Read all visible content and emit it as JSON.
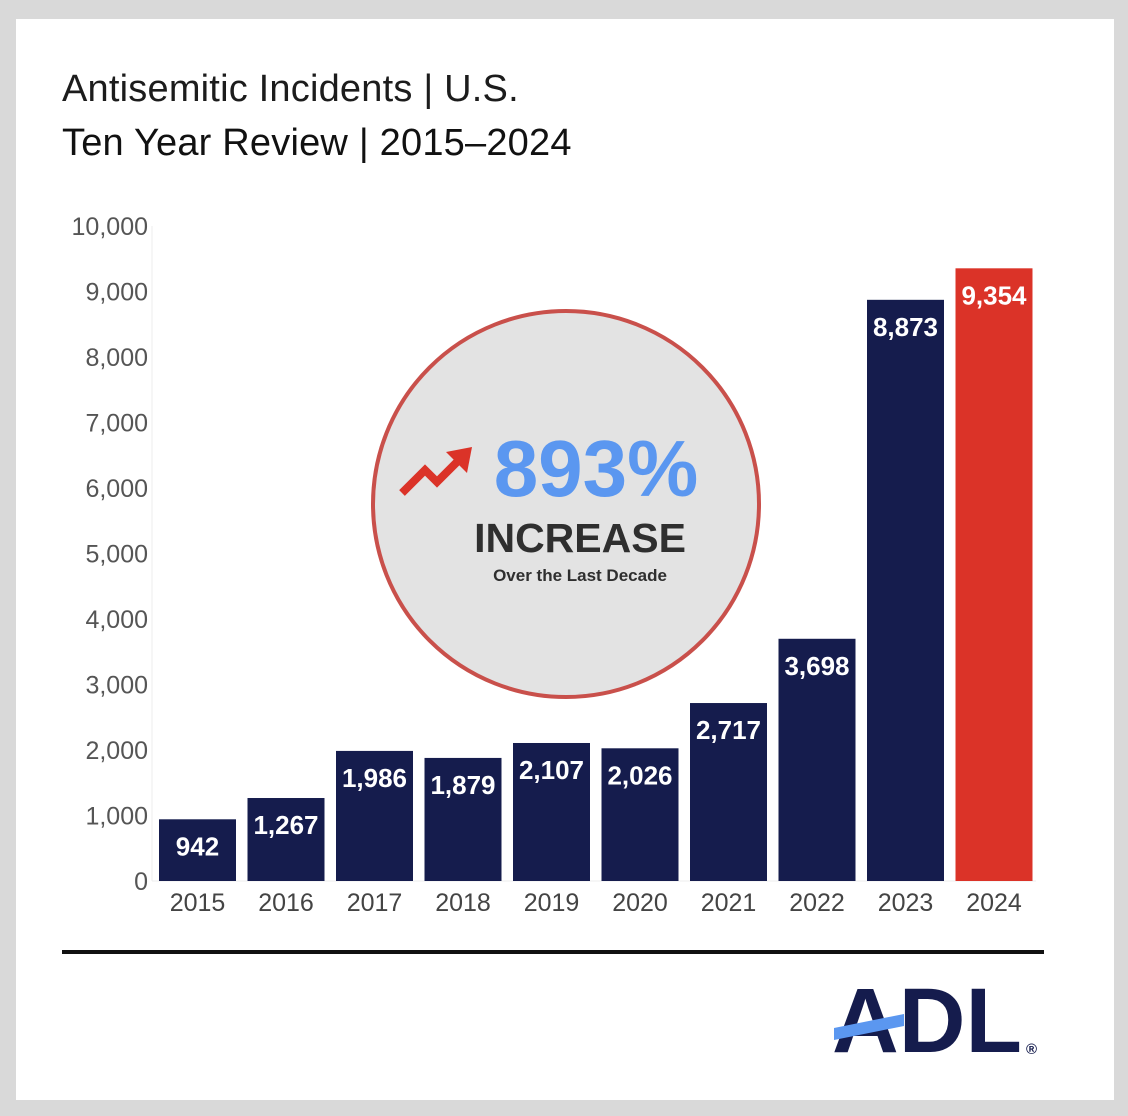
{
  "header": {
    "title": "Antisemitic Incidents | U.S.",
    "subtitle": "Ten Year Review | 2015–2024"
  },
  "callout": {
    "value": "893%",
    "label": "INCREASE",
    "sublabel": "Over the Last Decade",
    "icon": "trend-up-arrow-icon"
  },
  "logo": {
    "text": "ADL",
    "registered": "®"
  },
  "colors": {
    "bar": "#151c4d",
    "highlight_bar": "#db3328",
    "callout_value": "#5b97f0",
    "callout_ring": "#c9504b",
    "callout_fill": "#e3e3e3"
  },
  "chart_data": {
    "type": "bar",
    "title": "Antisemitic Incidents | U.S.",
    "subtitle": "Ten Year Review | 2015–2024",
    "categories": [
      "2015",
      "2016",
      "2017",
      "2018",
      "2019",
      "2020",
      "2021",
      "2022",
      "2023",
      "2024"
    ],
    "values": [
      942,
      1267,
      1986,
      1879,
      2107,
      2026,
      2717,
      3698,
      8873,
      9354
    ],
    "value_labels": [
      "942",
      "1,267",
      "1,986",
      "1,879",
      "2,107",
      "2,026",
      "2,717",
      "3,698",
      "8,873",
      "9,354"
    ],
    "highlight_category": "2024",
    "ylim": [
      0,
      10000
    ],
    "yticks": [
      0,
      1000,
      2000,
      3000,
      4000,
      5000,
      6000,
      7000,
      8000,
      9000,
      10000
    ],
    "ytick_labels": [
      "0",
      "1,000",
      "2,000",
      "3,000",
      "4,000",
      "5,000",
      "6,000",
      "7,000",
      "8,000",
      "9,000",
      "10,000"
    ],
    "xlabel": "",
    "ylabel": "",
    "grid": false,
    "legend": "none"
  }
}
